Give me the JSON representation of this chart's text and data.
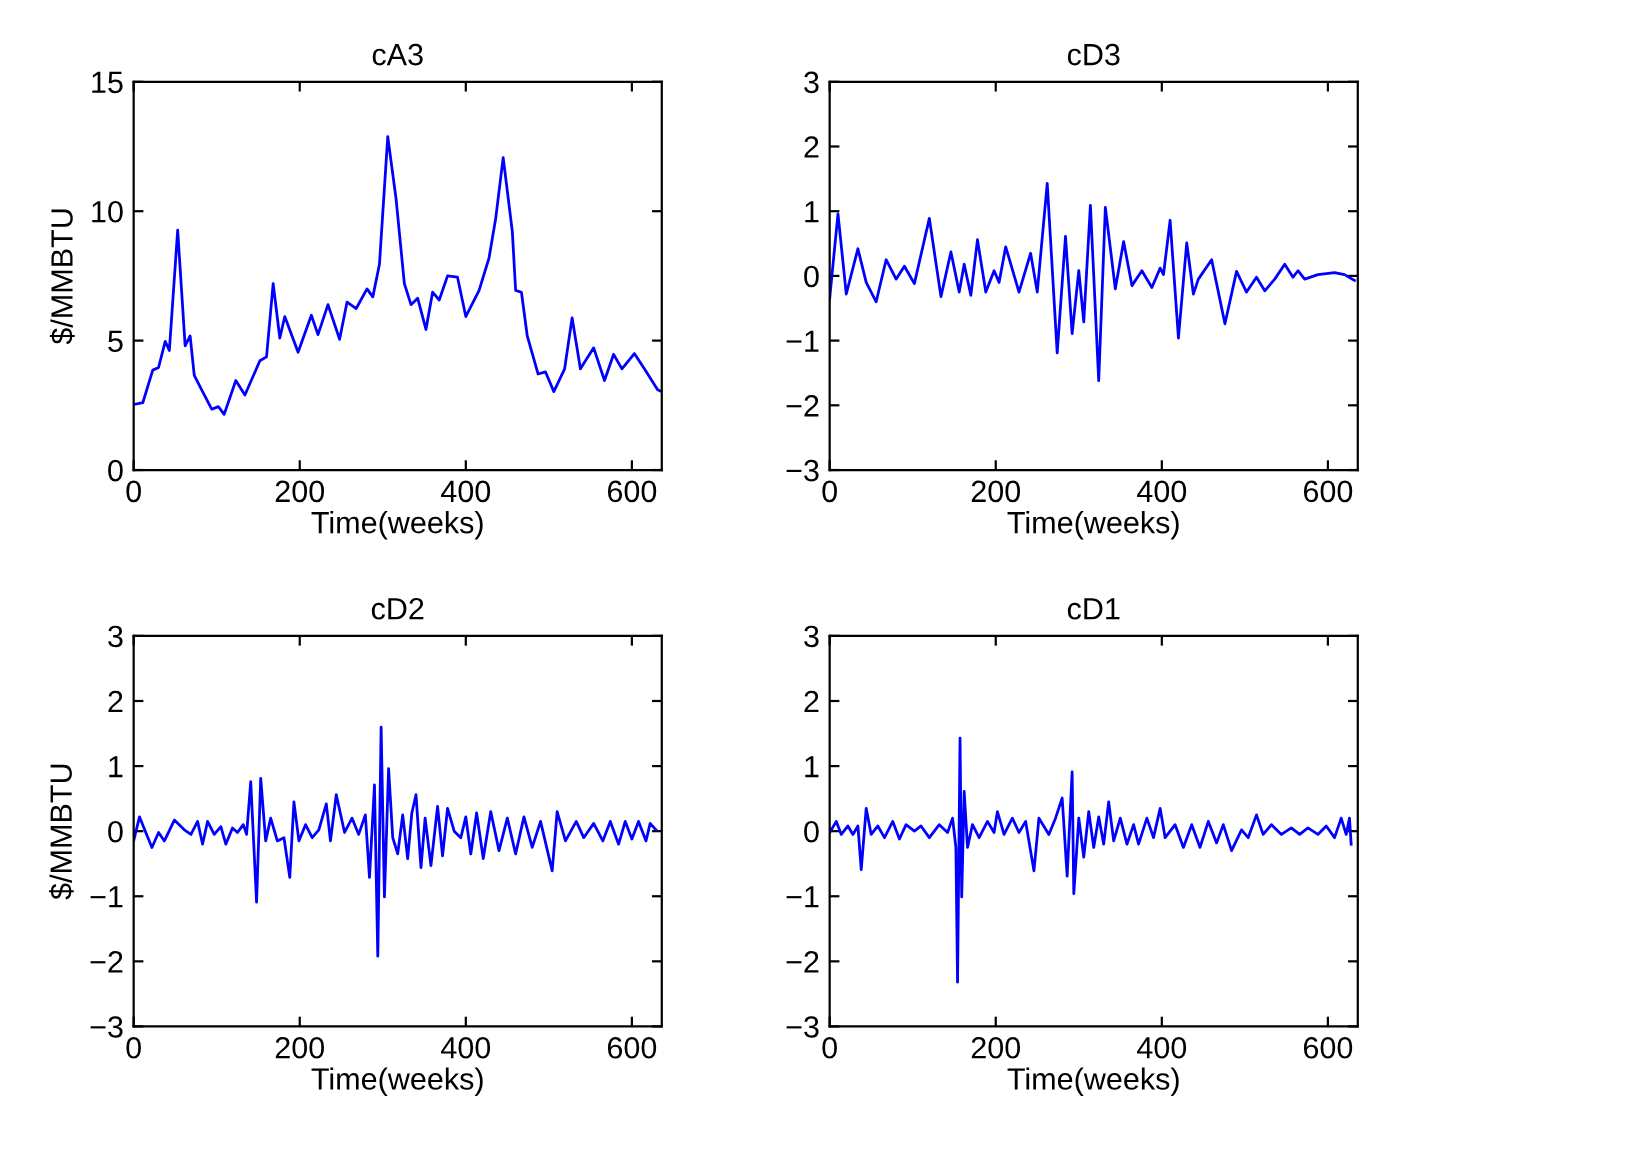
{
  "chart_data": [
    {
      "type": "line",
      "title": "cA3",
      "xlabel": "Time(weeks)",
      "ylabel": "$/MMBTU",
      "xlim": [
        0,
        636
      ],
      "xticks": [
        0,
        200,
        400,
        600
      ],
      "ylim": [
        0,
        15
      ],
      "yticks": [
        0,
        5,
        10,
        15
      ],
      "grid": false,
      "series": [
        {
          "color": "#0000ff",
          "x": [
            0,
            11,
            23,
            30,
            38,
            43,
            53,
            62,
            68,
            73,
            83,
            94,
            102,
            109,
            123,
            134,
            152,
            160,
            168,
            176,
            182,
            198,
            214,
            222,
            234,
            248,
            257,
            268,
            281,
            288,
            296,
            306,
            316,
            326,
            334,
            342,
            352,
            360,
            368,
            378,
            390,
            400,
            416,
            428,
            436,
            445,
            456,
            460,
            467,
            474,
            487,
            496,
            506,
            519,
            528,
            538,
            554,
            567,
            578,
            588,
            603,
            616,
            631,
            636
          ],
          "values": [
            2.53,
            2.6,
            3.86,
            3.96,
            4.97,
            4.62,
            9.27,
            4.8,
            5.18,
            3.66,
            3.03,
            2.35,
            2.45,
            2.15,
            3.46,
            2.9,
            4.22,
            4.37,
            7.2,
            5.1,
            5.93,
            4.55,
            5.98,
            5.23,
            6.39,
            5.05,
            6.49,
            6.24,
            7.0,
            6.69,
            7.95,
            12.88,
            10.48,
            7.2,
            6.39,
            6.64,
            5.43,
            6.87,
            6.57,
            7.5,
            7.45,
            5.93,
            6.94,
            8.2,
            9.72,
            12.07,
            9.22,
            6.94,
            6.87,
            5.18,
            3.71,
            3.79,
            3.03,
            3.91,
            5.88,
            3.91,
            4.72,
            3.46,
            4.47,
            3.91,
            4.5,
            3.86,
            3.1,
            3.03
          ]
        }
      ]
    },
    {
      "type": "line",
      "title": "cD3",
      "xlabel": "Time(weeks)",
      "xlim": [
        0,
        636
      ],
      "xticks": [
        0,
        200,
        400,
        600
      ],
      "ylim": [
        -3,
        3
      ],
      "yticks": [
        {
          "value": -3,
          "label": "−3"
        },
        {
          "value": -2,
          "label": "−2"
        },
        {
          "value": -1,
          "label": "−1"
        },
        0,
        1,
        2,
        3
      ],
      "grid": false,
      "series": [
        {
          "color": "#0000ff",
          "x": [
            0,
            10,
            20,
            34,
            44,
            56,
            68,
            80,
            90,
            102,
            120,
            134,
            146,
            156,
            162,
            170,
            178,
            188,
            198,
            204,
            212,
            228,
            242,
            250,
            262,
            274,
            284,
            292,
            300,
            306,
            314,
            324,
            332,
            344,
            354,
            364,
            376,
            388,
            398,
            402,
            410,
            420,
            430,
            438,
            444,
            460,
            476,
            490,
            502,
            514,
            524,
            536,
            548,
            558,
            564,
            572,
            588,
            608,
            620,
            632
          ],
          "values": [
            -0.35,
            0.96,
            -0.28,
            0.42,
            -0.1,
            -0.4,
            0.25,
            -0.05,
            0.15,
            -0.12,
            0.89,
            -0.32,
            0.37,
            -0.25,
            0.18,
            -0.3,
            0.56,
            -0.25,
            0.08,
            -0.1,
            0.45,
            -0.25,
            0.35,
            -0.25,
            1.43,
            -1.19,
            0.61,
            -0.89,
            0.08,
            -0.71,
            1.09,
            -1.62,
            1.06,
            -0.2,
            0.53,
            -0.15,
            0.08,
            -0.18,
            0.12,
            0.02,
            0.86,
            -0.96,
            0.51,
            -0.28,
            -0.05,
            0.25,
            -0.74,
            0.07,
            -0.25,
            -0.02,
            -0.23,
            -0.05,
            0.18,
            -0.02,
            0.08,
            -0.05,
            0.02,
            0.05,
            0.02,
            -0.07
          ]
        }
      ]
    },
    {
      "type": "line",
      "title": "cD2",
      "xlabel": "Time(weeks)",
      "ylabel": "$/MMBTU",
      "xlim": [
        0,
        636
      ],
      "xticks": [
        0,
        200,
        400,
        600
      ],
      "ylim": [
        -3,
        3
      ],
      "yticks": [
        {
          "value": -3,
          "label": "−3"
        },
        {
          "value": -2,
          "label": "−2"
        },
        {
          "value": -1,
          "label": "−1"
        },
        0,
        1,
        2,
        3
      ],
      "grid": false,
      "series": [
        {
          "color": "#0000ff",
          "x": [
            0,
            7,
            14,
            22,
            30,
            37,
            49,
            61,
            69,
            77,
            83,
            89,
            97,
            105,
            111,
            119,
            125,
            132,
            136,
            141,
            148,
            153,
            159,
            165,
            173,
            181,
            188,
            193,
            199,
            207,
            215,
            223,
            232,
            237,
            244,
            254,
            263,
            271,
            279,
            284,
            290,
            294,
            298,
            302,
            307,
            312,
            318,
            324,
            330,
            335,
            340,
            346,
            351,
            358,
            366,
            372,
            378,
            386,
            394,
            400,
            406,
            413,
            421,
            430,
            440,
            450,
            460,
            470,
            480,
            490,
            504,
            510,
            520,
            533,
            542,
            554,
            565,
            574,
            584,
            592,
            600,
            608,
            617,
            622,
            629
          ],
          "values": [
            -0.15,
            0.22,
            0,
            -0.25,
            -0.02,
            -0.15,
            0.17,
            0.02,
            -0.05,
            0.15,
            -0.2,
            0.15,
            -0.05,
            0.07,
            -0.2,
            0.05,
            -0.02,
            0.1,
            -0.05,
            0.76,
            -1.09,
            0.81,
            -0.15,
            0.2,
            -0.15,
            -0.1,
            -0.71,
            0.45,
            -0.15,
            0.1,
            -0.1,
            0.02,
            0.42,
            -0.15,
            0.56,
            -0.02,
            0.2,
            -0.05,
            0.25,
            -0.71,
            0.71,
            -1.92,
            1.6,
            -1.01,
            0.96,
            -0.1,
            -0.35,
            0.25,
            -0.42,
            0.28,
            0.56,
            -0.56,
            0.2,
            -0.53,
            0.38,
            -0.38,
            0.35,
            0,
            -0.1,
            0.22,
            -0.35,
            0.28,
            -0.42,
            0.3,
            -0.3,
            0.2,
            -0.35,
            0.22,
            -0.25,
            0.15,
            -0.61,
            0.3,
            -0.15,
            0.15,
            -0.1,
            0.12,
            -0.15,
            0.15,
            -0.2,
            0.15,
            -0.12,
            0.15,
            -0.15,
            0.12,
            0.02
          ]
        }
      ]
    },
    {
      "type": "line",
      "title": "cD1",
      "xlabel": "Time(weeks)",
      "xlim": [
        0,
        636
      ],
      "xticks": [
        0,
        200,
        400,
        600
      ],
      "ylim": [
        -3,
        3
      ],
      "yticks": [
        {
          "value": -3,
          "label": "−3"
        },
        {
          "value": -2,
          "label": "−2"
        },
        {
          "value": -1,
          "label": "−1"
        },
        0,
        1,
        2,
        3
      ],
      "grid": false,
      "series": [
        {
          "color": "#0000ff",
          "x": [
            0,
            8,
            14,
            22,
            28,
            34,
            38,
            44,
            50,
            58,
            66,
            76,
            84,
            92,
            102,
            110,
            120,
            132,
            142,
            148,
            152,
            154,
            157,
            159,
            162,
            166,
            172,
            180,
            190,
            198,
            202,
            210,
            220,
            228,
            236,
            246,
            252,
            264,
            272,
            280,
            286,
            292,
            294,
            300,
            306,
            312,
            318,
            324,
            330,
            336,
            342,
            350,
            358,
            366,
            372,
            382,
            390,
            398,
            404,
            416,
            426,
            436,
            446,
            456,
            466,
            474,
            484,
            496,
            504,
            514,
            522,
            532,
            544,
            556,
            566,
            576,
            588,
            598,
            608,
            616,
            622,
            626,
            628
          ],
          "values": [
            -0.02,
            0.15,
            -0.05,
            0.08,
            -0.05,
            0.08,
            -0.59,
            0.35,
            -0.05,
            0.08,
            -0.1,
            0.15,
            -0.12,
            0.1,
            0,
            0.08,
            -0.1,
            0.1,
            -0.02,
            0.2,
            -0.25,
            -2.32,
            1.43,
            -1.01,
            0.61,
            -0.25,
            0.1,
            -0.1,
            0.15,
            -0.02,
            0.3,
            -0.05,
            0.2,
            -0.02,
            0.15,
            -0.61,
            0.2,
            -0.05,
            0.2,
            0.51,
            -0.69,
            0.91,
            -0.96,
            0.2,
            -0.4,
            0.3,
            -0.25,
            0.22,
            -0.2,
            0.45,
            -0.15,
            0.2,
            -0.2,
            0.1,
            -0.2,
            0.2,
            -0.1,
            0.35,
            -0.1,
            0.1,
            -0.25,
            0.1,
            -0.25,
            0.15,
            -0.18,
            0.1,
            -0.3,
            0.02,
            -0.1,
            0.25,
            -0.05,
            0.1,
            -0.05,
            0.05,
            -0.05,
            0.05,
            -0.05,
            0.08,
            -0.1,
            0.2,
            -0.05,
            0.2,
            -0.2
          ]
        }
      ]
    }
  ]
}
